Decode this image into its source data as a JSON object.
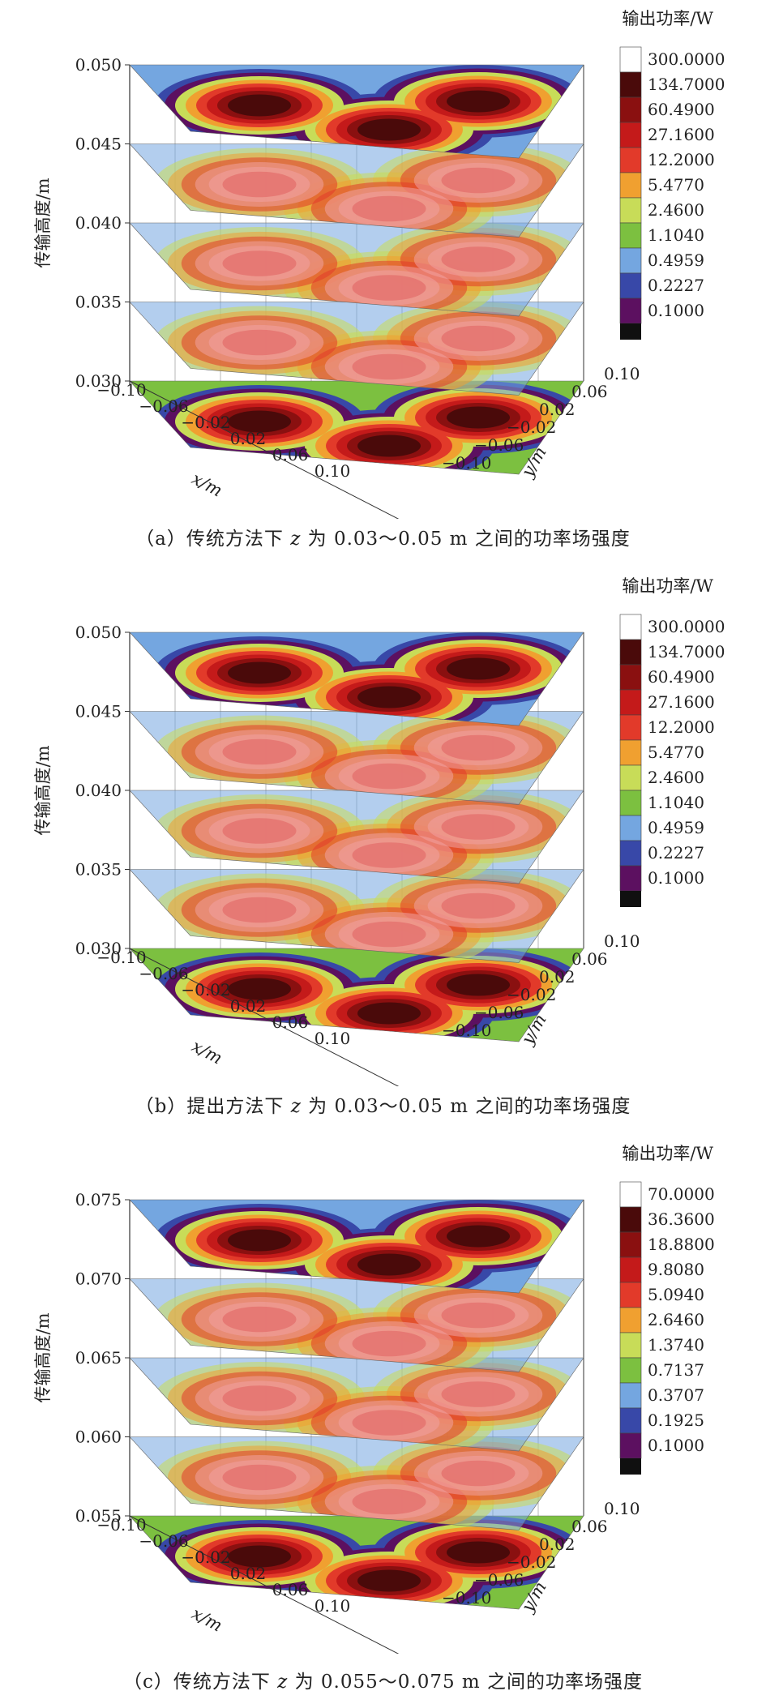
{
  "chart_data": [
    {
      "type": "3d-contour-slices",
      "panel": "a",
      "caption_prefix": "（a）传统方法下 ",
      "caption_var": "z",
      "caption_suffix": " 为 0.03～0.05 m 之间的功率场强度",
      "zlabel": "传输高度/m",
      "xlabel": "x/m",
      "ylabel": "y/m",
      "legend_title": "输出功率/W",
      "z_ticks": [
        "0.050",
        "0.045",
        "0.040",
        "0.035",
        "0.030"
      ],
      "z_range": [
        0.03,
        0.05
      ],
      "x_ticks": [
        "−0.10",
        "−0.06",
        "−0.02",
        "0.02",
        "0.06",
        "0.10"
      ],
      "y_ticks": [
        "0.10",
        "0.06",
        "0.02",
        "−0.02",
        "−0.06",
        "−0.10"
      ],
      "slice_heights": [
        0.03,
        0.035,
        0.04,
        0.045,
        0.05
      ],
      "levels": [
        "300.0000",
        "134.7000",
        "60.4900",
        "27.1600",
        "12.2000",
        "5.4770",
        "2.4600",
        "1.1040",
        "0.4959",
        "0.2227",
        "0.1000"
      ]
    },
    {
      "type": "3d-contour-slices",
      "panel": "b",
      "caption_prefix": "（b）提出方法下 ",
      "caption_var": "z",
      "caption_suffix": " 为 0.03～0.05 m 之间的功率场强度",
      "zlabel": "传输高度/m",
      "xlabel": "x/m",
      "ylabel": "y/m",
      "legend_title": "输出功率/W",
      "z_ticks": [
        "0.050",
        "0.045",
        "0.040",
        "0.035",
        "0.030"
      ],
      "z_range": [
        0.03,
        0.05
      ],
      "x_ticks": [
        "−0.10",
        "−0.06",
        "−0.02",
        "0.02",
        "0.06",
        "0.10"
      ],
      "y_ticks": [
        "0.10",
        "0.06",
        "0.02",
        "−0.02",
        "−0.06",
        "−0.10"
      ],
      "slice_heights": [
        0.03,
        0.035,
        0.04,
        0.045,
        0.05
      ],
      "levels": [
        "300.0000",
        "134.7000",
        "60.4900",
        "27.1600",
        "12.2000",
        "5.4770",
        "2.4600",
        "1.1040",
        "0.4959",
        "0.2227",
        "0.1000"
      ]
    },
    {
      "type": "3d-contour-slices",
      "panel": "c",
      "caption_prefix": "（c）传统方法下 ",
      "caption_var": "z",
      "caption_suffix": " 为 0.055～0.075 m 之间的功率场强度",
      "zlabel": "传输高度/m",
      "xlabel": "x/m",
      "ylabel": "y/m",
      "legend_title": "输出功率/W",
      "z_ticks": [
        "0.075",
        "0.070",
        "0.065",
        "0.060",
        "0.055"
      ],
      "z_range": [
        0.055,
        0.075
      ],
      "x_ticks": [
        "−0.10",
        "−0.06",
        "−0.02",
        "0.02",
        "0.06",
        "0.10"
      ],
      "y_ticks": [
        "0.10",
        "0.06",
        "0.02",
        "−0.02",
        "−0.06",
        "−0.10"
      ],
      "slice_heights": [
        0.055,
        0.06,
        0.065,
        0.07,
        0.075
      ],
      "levels": [
        "70.0000",
        "36.3600",
        "18.8800",
        "9.8080",
        "5.0940",
        "2.6460",
        "1.3740",
        "0.7137",
        "0.3707",
        "0.1925",
        "0.1000"
      ]
    }
  ],
  "colors": {
    "levels": [
      "#ffffff",
      "#4a0a0a",
      "#8a1010",
      "#c41a1a",
      "#e23a2a",
      "#f0a030",
      "#c8dc58",
      "#7cc040",
      "#74a6e0",
      "#3848a8",
      "#5c1060",
      "#101010"
    ],
    "slice_fill": "#f0a0a0",
    "slice_core": "#e06060",
    "axis": "#333333"
  }
}
